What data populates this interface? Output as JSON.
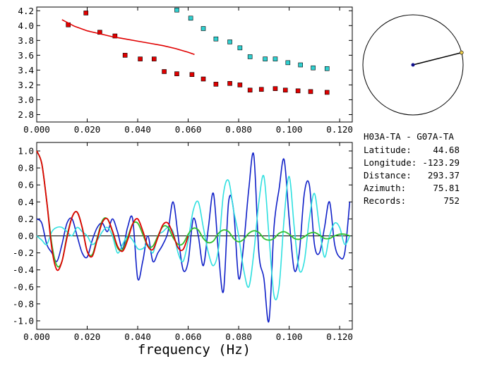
{
  "chart_data": [
    {
      "type": "scatter",
      "xlim": [
        0,
        0.125
      ],
      "ylim": [
        2.7,
        4.25
      ],
      "x_ticks": [
        "0.000",
        "0.020",
        "0.040",
        "0.060",
        "0.080",
        "0.100",
        "0.120"
      ],
      "y_ticks": [
        "2.8",
        "3.0",
        "3.2",
        "3.4",
        "3.6",
        "3.8",
        "4.0",
        "4.2"
      ],
      "series": [
        {
          "color": "#e00000",
          "marker": "square",
          "points": [
            [
              0.0125,
              4.01
            ],
            [
              0.0195,
              4.17
            ],
            [
              0.025,
              3.91
            ],
            [
              0.031,
              3.86
            ],
            [
              0.035,
              3.6
            ],
            [
              0.041,
              3.55
            ],
            [
              0.0465,
              3.55
            ],
            [
              0.0505,
              3.38
            ],
            [
              0.0555,
              3.35
            ],
            [
              0.0615,
              3.34
            ],
            [
              0.066,
              3.28
            ],
            [
              0.071,
              3.21
            ],
            [
              0.0765,
              3.22
            ],
            [
              0.0805,
              3.2
            ],
            [
              0.0845,
              3.13
            ],
            [
              0.089,
              3.14
            ],
            [
              0.0945,
              3.15
            ],
            [
              0.0985,
              3.13
            ],
            [
              0.1035,
              3.12
            ],
            [
              0.1085,
              3.11
            ],
            [
              0.115,
              3.1
            ]
          ]
        },
        {
          "color": "#30d0d0",
          "marker": "square",
          "points": [
            [
              0.0555,
              4.21
            ],
            [
              0.061,
              4.1
            ],
            [
              0.066,
              3.96
            ],
            [
              0.071,
              3.82
            ],
            [
              0.0765,
              3.78
            ],
            [
              0.0805,
              3.7
            ],
            [
              0.0845,
              3.58
            ],
            [
              0.0905,
              3.55
            ],
            [
              0.0945,
              3.55
            ],
            [
              0.0995,
              3.5
            ],
            [
              0.1045,
              3.47
            ],
            [
              0.1095,
              3.43
            ],
            [
              0.115,
              3.42
            ]
          ]
        },
        {
          "type": "line",
          "color": "#e00000",
          "points": [
            [
              0.01,
              4.08
            ],
            [
              0.015,
              3.99
            ],
            [
              0.02,
              3.93
            ],
            [
              0.025,
              3.89
            ],
            [
              0.03,
              3.85
            ],
            [
              0.035,
              3.82
            ],
            [
              0.04,
              3.79
            ],
            [
              0.045,
              3.76
            ],
            [
              0.05,
              3.73
            ],
            [
              0.055,
              3.69
            ],
            [
              0.06,
              3.64
            ],
            [
              0.0625,
              3.61
            ]
          ]
        }
      ]
    },
    {
      "type": "line",
      "xlabel": "frequency (Hz)",
      "xlim": [
        0,
        0.125
      ],
      "ylim": [
        -1.1,
        1.1
      ],
      "x_ticks": [
        "0.000",
        "0.020",
        "0.040",
        "0.060",
        "0.080",
        "0.100",
        "0.120"
      ],
      "y_ticks": [
        "1.0",
        "0.8",
        "0.6",
        "0.4",
        "0.2",
        "0.0",
        "-0.2",
        "-0.4",
        "-0.6",
        "-0.8",
        "-1.0"
      ],
      "series": [
        {
          "color": "#1020c8",
          "x": [
            0,
            0.002,
            0.004,
            0.006,
            0.008,
            0.01,
            0.012,
            0.014,
            0.016,
            0.018,
            0.02,
            0.022,
            0.024,
            0.026,
            0.028,
            0.03,
            0.032,
            0.034,
            0.036,
            0.038,
            0.04,
            0.042,
            0.044,
            0.046,
            0.048,
            0.05,
            0.052,
            0.054,
            0.056,
            0.058,
            0.06,
            0.062,
            0.064,
            0.066,
            0.068,
            0.07,
            0.072,
            0.074,
            0.076,
            0.078,
            0.08,
            0.082,
            0.084,
            0.086,
            0.088,
            0.09,
            0.092,
            0.094,
            0.096,
            0.098,
            0.1,
            0.102,
            0.104,
            0.106,
            0.108,
            0.11,
            0.112,
            0.114,
            0.116,
            0.118,
            0.12,
            0.122,
            0.124
          ],
          "y": [
            0.2,
            0.15,
            -0.1,
            -0.2,
            -0.3,
            -0.1,
            0.15,
            0.2,
            0.0,
            -0.2,
            -0.25,
            -0.05,
            0.1,
            0.15,
            0.05,
            0.2,
            0.05,
            -0.15,
            0.1,
            0.2,
            -0.5,
            -0.3,
            0.0,
            -0.3,
            -0.2,
            -0.1,
            0.05,
            0.4,
            0.0,
            -0.4,
            -0.3,
            0.2,
            0.0,
            -0.35,
            0.1,
            0.5,
            -0.2,
            -0.65,
            0.4,
            0.3,
            -0.5,
            -0.1,
            0.55,
            0.95,
            -0.2,
            -0.5,
            -1.0,
            0.1,
            0.55,
            0.9,
            0.2,
            -0.4,
            -0.2,
            0.5,
            0.6,
            -0.1,
            -0.2,
            0.1,
            0.4,
            -0.1,
            -0.25,
            -0.2,
            0.4
          ]
        },
        {
          "color": "#30e0e0",
          "x": [
            0,
            0.002,
            0.004,
            0.006,
            0.008,
            0.01,
            0.012,
            0.014,
            0.016,
            0.018,
            0.02,
            0.022,
            0.024,
            0.026,
            0.028,
            0.03,
            0.032,
            0.034,
            0.036,
            0.038,
            0.04,
            0.042,
            0.044,
            0.046,
            0.048,
            0.05,
            0.052,
            0.054,
            0.056,
            0.058,
            0.06,
            0.062,
            0.064,
            0.066,
            0.068,
            0.07,
            0.072,
            0.074,
            0.076,
            0.078,
            0.08,
            0.082,
            0.084,
            0.086,
            0.088,
            0.09,
            0.092,
            0.094,
            0.096,
            0.098,
            0.1,
            0.102,
            0.104,
            0.106,
            0.108,
            0.11,
            0.112,
            0.114,
            0.116,
            0.118,
            0.12,
            0.122,
            0.124
          ],
          "y": [
            0.0,
            -0.05,
            -0.1,
            0.05,
            0.1,
            0.1,
            0.05,
            0.0,
            0.1,
            0.05,
            0.0,
            -0.1,
            -0.05,
            0.05,
            0.1,
            0.0,
            -0.2,
            -0.1,
            0.0,
            -0.05,
            -0.15,
            -0.15,
            -0.1,
            -0.2,
            0.0,
            0.05,
            0.1,
            0.05,
            -0.2,
            -0.3,
            -0.05,
            0.3,
            0.4,
            0.1,
            -0.2,
            -0.35,
            -0.15,
            0.5,
            0.65,
            0.3,
            0.0,
            -0.4,
            -0.6,
            -0.2,
            0.4,
            0.7,
            0.0,
            -0.7,
            -0.6,
            0.2,
            0.7,
            0.1,
            -0.4,
            -0.3,
            0.2,
            0.5,
            0.1,
            -0.25,
            0.0,
            0.15,
            0.1,
            -0.1,
            0.0
          ]
        },
        {
          "color": "#30c030",
          "x": [
            0,
            0.002,
            0.004,
            0.006,
            0.008,
            0.01,
            0.012,
            0.014,
            0.016,
            0.018,
            0.02,
            0.022,
            0.024,
            0.026,
            0.028,
            0.03,
            0.032,
            0.034,
            0.036,
            0.038,
            0.04,
            0.042,
            0.044,
            0.046,
            0.048,
            0.05,
            0.052,
            0.054,
            0.056,
            0.058,
            0.06,
            0.062,
            0.064,
            0.066,
            0.068,
            0.07,
            0.072,
            0.074,
            0.076,
            0.078,
            0.08,
            0.082,
            0.084,
            0.086,
            0.088,
            0.09,
            0.092,
            0.094,
            0.096,
            0.098,
            0.1,
            0.102,
            0.104,
            0.106,
            0.108,
            0.11,
            0.112,
            0.114,
            0.116,
            0.118,
            0.12,
            0.122,
            0.124
          ],
          "y": [
            1.0,
            0.85,
            0.4,
            -0.1,
            -0.35,
            -0.3,
            0.0,
            0.22,
            0.28,
            0.1,
            -0.18,
            -0.22,
            -0.02,
            0.18,
            0.2,
            0.05,
            -0.14,
            -0.16,
            -0.02,
            0.14,
            0.15,
            0.02,
            -0.12,
            -0.12,
            0.0,
            0.11,
            0.1,
            -0.02,
            -0.1,
            -0.09,
            0.02,
            0.09,
            0.07,
            -0.03,
            -0.08,
            -0.06,
            0.03,
            0.07,
            0.05,
            -0.03,
            -0.07,
            -0.04,
            0.03,
            0.06,
            0.04,
            -0.03,
            -0.05,
            -0.03,
            0.03,
            0.05,
            0.02,
            -0.03,
            -0.04,
            -0.01,
            0.03,
            0.04,
            0.01,
            -0.03,
            -0.03,
            0.0,
            0.02,
            0.02,
            0.0
          ]
        },
        {
          "color": "#e00000",
          "x": [
            0,
            0.002,
            0.004,
            0.006,
            0.008,
            0.01,
            0.012,
            0.014,
            0.016,
            0.018,
            0.02,
            0.022,
            0.024,
            0.026,
            0.028,
            0.03,
            0.032,
            0.034,
            0.036,
            0.038,
            0.04,
            0.042,
            0.044,
            0.046,
            0.048,
            0.05,
            0.052,
            0.054,
            0.056,
            0.058,
            0.06
          ],
          "y": [
            1.0,
            0.85,
            0.4,
            -0.15,
            -0.4,
            -0.3,
            -0.02,
            0.22,
            0.28,
            0.1,
            -0.18,
            -0.24,
            -0.04,
            0.16,
            0.2,
            0.06,
            -0.12,
            -0.18,
            -0.05,
            0.14,
            0.2,
            0.06,
            -0.12,
            -0.16,
            -0.02,
            0.13,
            0.15,
            0.02,
            -0.14,
            -0.16,
            0.0
          ]
        }
      ]
    }
  ],
  "compass": {
    "azimuth": 75.81,
    "center_color": "#10108c",
    "end_color": "#f0d050"
  },
  "info": {
    "title": "H03A-TA - G07A-TA",
    "rows": [
      {
        "label": "Latitude:",
        "value": "44.68"
      },
      {
        "label": "Longitude:",
        "value": "-123.29"
      },
      {
        "label": "Distance:",
        "value": "293.37"
      },
      {
        "label": "Azimuth:",
        "value": "75.81"
      },
      {
        "label": "Records:",
        "value": "752"
      }
    ]
  }
}
